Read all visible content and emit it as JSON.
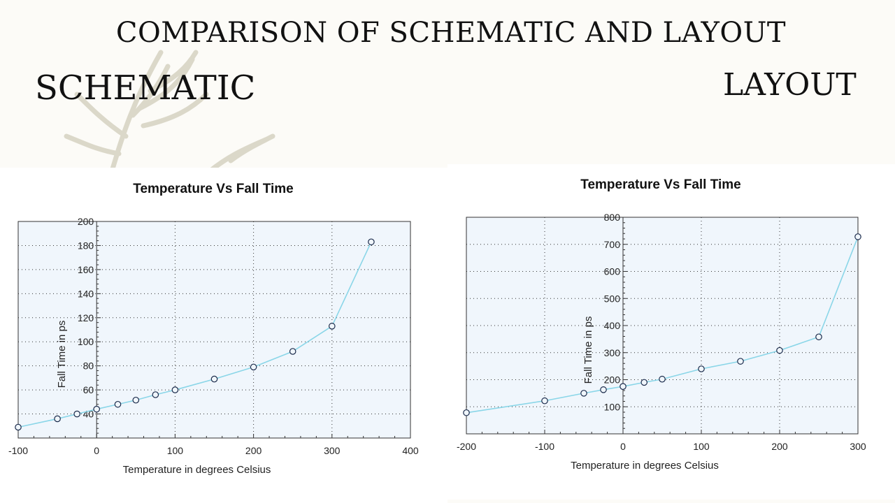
{
  "slide": {
    "title": "COMPARISON OF SCHEMATIC AND LAYOUT",
    "left_label": "SCHEMATIC",
    "right_label": "LAYOUT"
  },
  "colors": {
    "line": "#8ad6e8",
    "plot_bg": "#f0f6fc",
    "marker_stroke": "#1a2a4a"
  },
  "chart_data": [
    {
      "type": "line",
      "title": "Temperature Vs Fall Time",
      "xlabel": "Temperature in degrees Celsius",
      "ylabel": "Fall Time in ps",
      "xlim": [
        -100,
        400
      ],
      "ylim": [
        20,
        200
      ],
      "xticks": [
        -100,
        0,
        100,
        200,
        300,
        400
      ],
      "yticks": [
        40,
        60,
        80,
        100,
        120,
        140,
        160,
        180,
        200
      ],
      "grid": true,
      "series": [
        {
          "x": [
            -100,
            -50,
            -25,
            0,
            27,
            50,
            75,
            100,
            150,
            200,
            250,
            300,
            350
          ],
          "y": [
            29,
            36,
            40,
            44,
            48,
            51.5,
            56,
            60,
            69,
            79,
            92,
            113,
            183
          ]
        }
      ]
    },
    {
      "type": "line",
      "title": "Temperature Vs Fall Time",
      "xlabel": "Temperature in degrees Celsius",
      "ylabel": "Fall Time in ps",
      "xlim": [
        -200,
        300
      ],
      "ylim": [
        0,
        800
      ],
      "xticks": [
        -200,
        -100,
        0,
        100,
        200,
        300
      ],
      "yticks": [
        100,
        200,
        300,
        400,
        500,
        600,
        700,
        800
      ],
      "grid": true,
      "series": [
        {
          "x": [
            -200,
            -100,
            -50,
            -25,
            0,
            27,
            50,
            100,
            150,
            200,
            250,
            300
          ],
          "y": [
            78,
            122,
            150,
            163,
            175,
            190,
            202,
            240,
            268,
            308,
            358,
            728
          ]
        }
      ]
    }
  ]
}
